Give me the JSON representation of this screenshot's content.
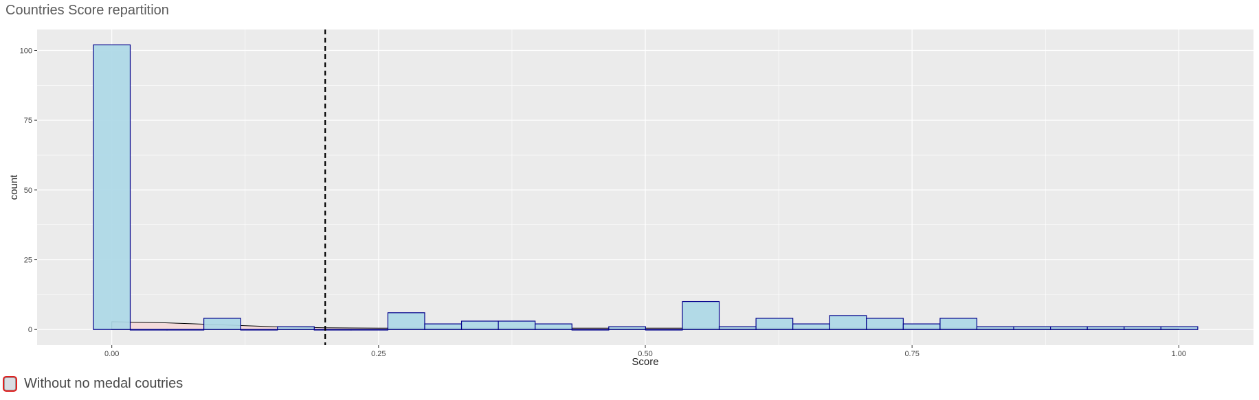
{
  "page_title": "Countries Score repartition",
  "filter": {
    "label": "Without no medal coutries",
    "checked": false
  },
  "colors": {
    "panel": "#ebebeb",
    "grid": "#ffffff",
    "bar_fill": "#add8e6",
    "bar_stroke": "#00008b",
    "density_fill": "#f6d7d7",
    "vline": "#000000"
  },
  "chart_data": {
    "type": "bar",
    "title": "",
    "xlabel": "Score",
    "ylabel": "count",
    "xlim": [
      -0.07,
      1.07
    ],
    "ylim": [
      -5.6,
      107.5
    ],
    "x_ticks": [
      0.0,
      0.25,
      0.5,
      0.75,
      1.0
    ],
    "x_tick_labels": [
      "0.00",
      "0.25",
      "0.50",
      "0.75",
      "1.00"
    ],
    "y_ticks": [
      0,
      25,
      50,
      75,
      100
    ],
    "y_tick_labels": [
      "0",
      "25",
      "50",
      "75",
      "100"
    ],
    "bin_width": 0.0345,
    "bins": [
      {
        "x": 0.0,
        "count": 102
      },
      {
        "x": 0.0345,
        "count": 0
      },
      {
        "x": 0.069,
        "count": 0
      },
      {
        "x": 0.1035,
        "count": 4
      },
      {
        "x": 0.138,
        "count": 0
      },
      {
        "x": 0.1725,
        "count": 1
      },
      {
        "x": 0.207,
        "count": 0
      },
      {
        "x": 0.2415,
        "count": 0
      },
      {
        "x": 0.276,
        "count": 6
      },
      {
        "x": 0.3105,
        "count": 2
      },
      {
        "x": 0.345,
        "count": 3
      },
      {
        "x": 0.3795,
        "count": 3
      },
      {
        "x": 0.414,
        "count": 2
      },
      {
        "x": 0.4485,
        "count": 0
      },
      {
        "x": 0.483,
        "count": 1
      },
      {
        "x": 0.5175,
        "count": 0
      },
      {
        "x": 0.552,
        "count": 10
      },
      {
        "x": 0.5865,
        "count": 1
      },
      {
        "x": 0.621,
        "count": 4
      },
      {
        "x": 0.6555,
        "count": 2
      },
      {
        "x": 0.69,
        "count": 5
      },
      {
        "x": 0.7245,
        "count": 4
      },
      {
        "x": 0.759,
        "count": 2
      },
      {
        "x": 0.7935,
        "count": 4
      },
      {
        "x": 0.828,
        "count": 1
      },
      {
        "x": 0.8625,
        "count": 1
      },
      {
        "x": 0.897,
        "count": 1
      },
      {
        "x": 0.9315,
        "count": 1
      },
      {
        "x": 0.966,
        "count": 1
      },
      {
        "x": 1.0005,
        "count": 1
      }
    ],
    "density": {
      "x": [
        0.0,
        0.05,
        0.1,
        0.15,
        0.2,
        0.25,
        0.3,
        0.35,
        0.4,
        0.45,
        0.5,
        0.55,
        0.6,
        0.65,
        0.7,
        0.75,
        0.8,
        0.85,
        0.9,
        0.95,
        1.0
      ],
      "y": [
        2.8,
        2.4,
        1.7,
        1.0,
        0.6,
        0.5,
        0.5,
        0.5,
        0.5,
        0.5,
        0.5,
        0.5,
        0.5,
        0.5,
        0.5,
        0.5,
        0.5,
        0.5,
        0.5,
        0.4,
        0.3
      ]
    },
    "vline_x": 0.2
  }
}
